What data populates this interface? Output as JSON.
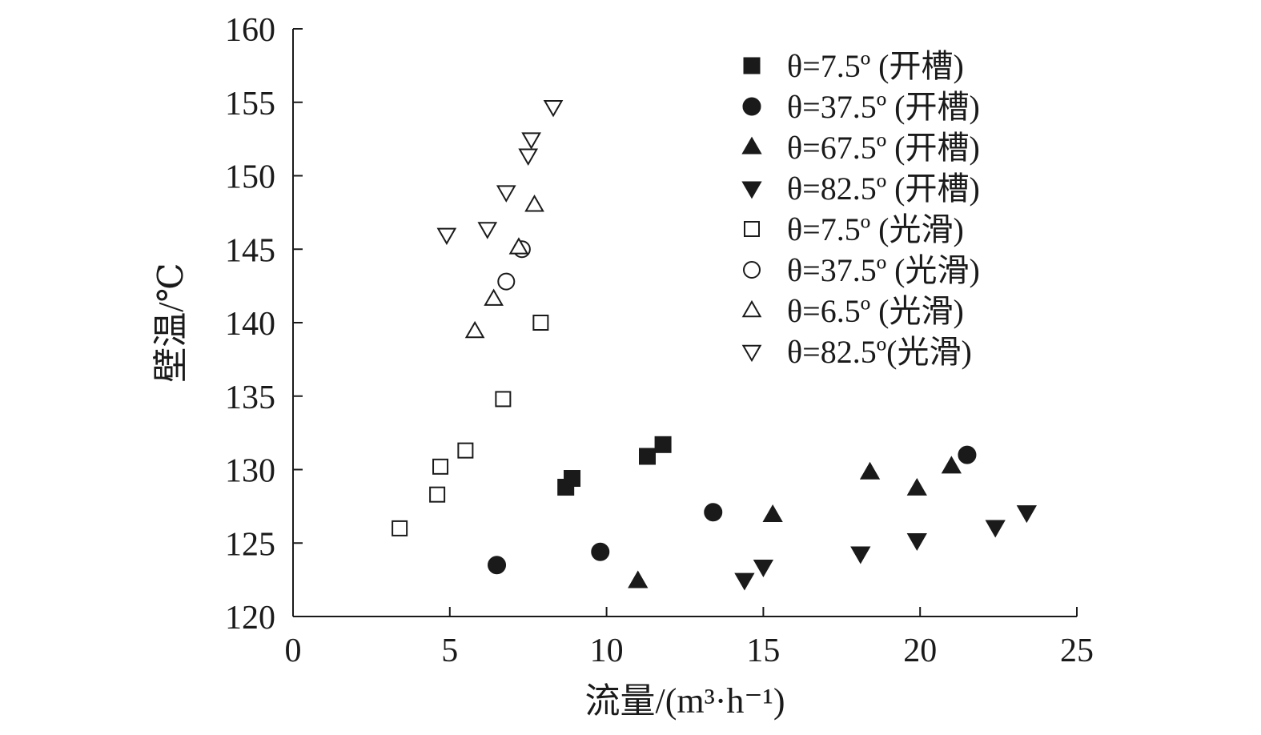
{
  "chart_data": {
    "type": "scatter",
    "xlabel": "流量/(m³·h⁻¹)",
    "ylabel": "壁温/℃",
    "xlim": [
      0,
      25
    ],
    "ylim": [
      120,
      160
    ],
    "xticks": [
      0,
      5,
      10,
      15,
      20,
      25
    ],
    "yticks": [
      120,
      125,
      130,
      135,
      140,
      145,
      150,
      155,
      160
    ],
    "grid": false,
    "legend_position": "top-right",
    "series": [
      {
        "name": "θ=7.5º (开槽)",
        "marker": "square",
        "filled": true,
        "points": [
          [
            8.7,
            128.8
          ],
          [
            8.9,
            129.4
          ],
          [
            11.3,
            130.9
          ],
          [
            11.8,
            131.7
          ]
        ]
      },
      {
        "name": "θ=37.5º (开槽)",
        "marker": "circle",
        "filled": true,
        "points": [
          [
            6.5,
            123.5
          ],
          [
            9.8,
            124.4
          ],
          [
            13.4,
            127.1
          ],
          [
            21.5,
            131.0
          ]
        ]
      },
      {
        "name": "θ=67.5º (开槽)",
        "marker": "triangle-up",
        "filled": true,
        "points": [
          [
            11.0,
            122.4
          ],
          [
            15.3,
            126.9
          ],
          [
            18.4,
            129.8
          ],
          [
            19.9,
            128.7
          ],
          [
            21.0,
            130.2
          ]
        ]
      },
      {
        "name": "θ=82.5º (开槽)",
        "marker": "triangle-down",
        "filled": true,
        "points": [
          [
            14.4,
            122.5
          ],
          [
            15.0,
            123.4
          ],
          [
            18.1,
            124.3
          ],
          [
            19.9,
            125.2
          ],
          [
            22.4,
            126.1
          ],
          [
            23.4,
            127.1
          ]
        ]
      },
      {
        "name": "θ=7.5º (光滑)",
        "marker": "square",
        "filled": false,
        "points": [
          [
            3.4,
            126.0
          ],
          [
            4.6,
            128.3
          ],
          [
            4.7,
            130.2
          ],
          [
            5.5,
            131.3
          ],
          [
            6.7,
            134.8
          ],
          [
            7.9,
            140.0
          ]
        ]
      },
      {
        "name": "θ=37.5º (光滑)",
        "marker": "circle",
        "filled": false,
        "points": [
          [
            6.8,
            142.8
          ],
          [
            7.3,
            145.0
          ]
        ]
      },
      {
        "name": "θ=6.5º (光滑)",
        "marker": "triangle-up",
        "filled": false,
        "points": [
          [
            5.8,
            139.4
          ],
          [
            6.4,
            141.6
          ],
          [
            7.2,
            145.1
          ],
          [
            7.7,
            148.0
          ]
        ]
      },
      {
        "name": "θ=82.5º(光滑)",
        "marker": "triangle-down",
        "filled": false,
        "points": [
          [
            4.9,
            146.0
          ],
          [
            6.2,
            146.4
          ],
          [
            6.8,
            148.9
          ],
          [
            7.5,
            151.4
          ],
          [
            7.6,
            152.5
          ],
          [
            8.3,
            154.7
          ]
        ]
      }
    ]
  }
}
